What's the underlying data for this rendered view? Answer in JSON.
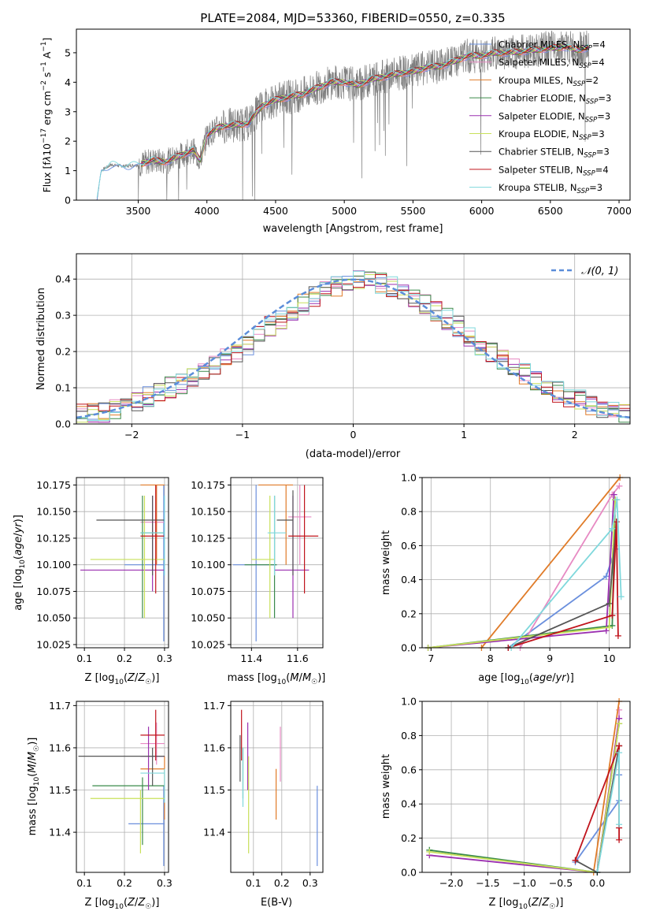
{
  "colors": {
    "chabrier_miles": "#6a8fdd",
    "salpeter_miles": "#e78ac3",
    "kroupa_miles": "#e07b28",
    "chabrier_elodie": "#3a8a4a",
    "salpeter_elodie": "#9b30b0",
    "kroupa_elodie": "#c8e05a",
    "chabrier_stelib": "#555555",
    "salpeter_stelib": "#c0141c",
    "kroupa_stelib": "#7fd8dc",
    "grid": "#b0b0b0",
    "normal_curve": "#5b8dd9"
  },
  "chart_data": [
    {
      "id": "spectrum",
      "type": "line",
      "title": "PLATE=2084, MJD=53360, FIBERID=0550, z=0.335",
      "xlabel": "wavelength [Angstrom, rest frame]",
      "ylabel": "Flux [f_λ 10^-17 erg cm^-2 s^-1 A^-1]",
      "xlim": [
        3050,
        7080
      ],
      "ylim": [
        0,
        5.8
      ],
      "xticks": [
        3500,
        4000,
        4500,
        5000,
        5500,
        6000,
        6500,
        7000
      ],
      "yticks": [
        0,
        1,
        2,
        3,
        4,
        5
      ],
      "grid": false,
      "legend": "top-right",
      "data_continuum": {
        "x": [
          3200,
          3230,
          3300,
          3400,
          3500,
          3600,
          3700,
          3800,
          3900,
          3950,
          4000,
          4100,
          4200,
          4300,
          4400,
          4500,
          4600,
          4700,
          4800,
          4900,
          5000,
          5100,
          5200,
          5300,
          5400,
          5500,
          5600,
          5700,
          5800,
          5900,
          6000,
          6100,
          6200,
          6300,
          6400,
          6500,
          6600,
          6700,
          6800
        ],
        "y": [
          0.0,
          1.0,
          1.2,
          1.15,
          1.2,
          1.35,
          1.3,
          1.5,
          1.7,
          1.35,
          2.2,
          2.5,
          2.55,
          2.6,
          3.2,
          3.4,
          3.5,
          3.6,
          3.8,
          4.0,
          4.0,
          3.9,
          4.1,
          4.2,
          4.3,
          4.35,
          4.5,
          4.55,
          4.7,
          4.9,
          4.9,
          5.0,
          5.0,
          5.05,
          5.1,
          5.15,
          5.2,
          5.1,
          5.2
        ]
      },
      "series_names": [
        "Chabrier MILES, N_SSP=4",
        "Salpeter MILES, N_SSP=4",
        "Kroupa MILES, N_SSP=2",
        "Chabrier ELODIE, N_SSP=3",
        "Salpeter ELODIE, N_SSP=3",
        "Kroupa ELODIE, N_SSP=3",
        "Chabrier STELIB, N_SSP=3",
        "Salpeter STELIB, N_SSP=4",
        "Kroupa STELIB, N_SSP=3"
      ]
    },
    {
      "id": "residuals",
      "type": "line",
      "xlabel": "(data-model)/error",
      "ylabel": "Normed distribution",
      "xlim": [
        -2.5,
        2.5
      ],
      "ylim": [
        0,
        0.47
      ],
      "xticks": [
        -2,
        -1,
        0,
        1,
        2
      ],
      "yticks": [
        0.0,
        0.1,
        0.2,
        0.3,
        0.4
      ],
      "grid": true,
      "legend": "top-right",
      "legend_label": "N(0,1)",
      "bin_width": 0.1,
      "bin_start": -2.5,
      "hist_base": [
        0.025,
        0.03,
        0.03,
        0.04,
        0.045,
        0.06,
        0.075,
        0.085,
        0.1,
        0.11,
        0.125,
        0.14,
        0.16,
        0.18,
        0.2,
        0.22,
        0.245,
        0.27,
        0.29,
        0.31,
        0.33,
        0.35,
        0.365,
        0.38,
        0.39,
        0.4,
        0.395,
        0.39,
        0.38,
        0.365,
        0.345,
        0.33,
        0.31,
        0.29,
        0.27,
        0.245,
        0.22,
        0.2,
        0.18,
        0.16,
        0.14,
        0.12,
        0.11,
        0.09,
        0.075,
        0.065,
        0.055,
        0.045,
        0.035,
        0.03
      ]
    },
    {
      "id": "age_vs_Z",
      "type": "scatter",
      "xlabel": "Z [log10(Z/Z☉)]",
      "ylabel": "age [log10(age/yr)]",
      "xlim": [
        0.08,
        0.31
      ],
      "ylim": [
        10.022,
        10.182
      ],
      "xticks": [
        0.1,
        0.2,
        0.3
      ],
      "yticks": [
        10.025,
        10.05,
        10.075,
        10.1,
        10.125,
        10.15,
        10.175
      ],
      "grid": true,
      "points": [
        {
          "series": "chabrier_miles",
          "x": 0.298,
          "xerr": [
            0.2,
            0.3
          ],
          "y": 10.1,
          "yerr": [
            10.028,
            10.175
          ]
        },
        {
          "series": "salpeter_miles",
          "x": 0.28,
          "xerr": [
            0.24,
            0.3
          ],
          "y": 10.14,
          "yerr": [
            10.1,
            10.175
          ]
        },
        {
          "series": "kroupa_miles",
          "x": 0.28,
          "xerr": [
            0.24,
            0.3
          ],
          "y": 10.175,
          "yerr": [
            10.1,
            10.175
          ]
        },
        {
          "series": "chabrier_elodie",
          "x": 0.245,
          "xerr": [
            0.24,
            0.3
          ],
          "y": 10.13,
          "yerr": [
            10.05,
            10.165
          ]
        },
        {
          "series": "salpeter_elodie",
          "x": 0.27,
          "xerr": [
            0.09,
            0.3
          ],
          "y": 10.095,
          "yerr": [
            10.075,
            10.165
          ]
        },
        {
          "series": "kroupa_elodie",
          "x": 0.25,
          "xerr": [
            0.115,
            0.3
          ],
          "y": 10.105,
          "yerr": [
            10.05,
            10.165
          ]
        },
        {
          "series": "chabrier_stelib",
          "x": 0.27,
          "xerr": [
            0.13,
            0.3
          ],
          "y": 10.142,
          "yerr": [
            10.09,
            10.165
          ]
        },
        {
          "series": "salpeter_stelib",
          "x": 0.278,
          "xerr": [
            0.24,
            0.3
          ],
          "y": 10.127,
          "yerr": [
            10.073,
            10.175
          ]
        },
        {
          "series": "kroupa_stelib",
          "x": 0.3,
          "xerr": [
            0.24,
            0.3
          ],
          "y": 10.13,
          "yerr": [
            10.09,
            10.165
          ]
        }
      ]
    },
    {
      "id": "age_vs_mass",
      "type": "scatter",
      "xlabel": "mass [log10(M/M☉)]",
      "xlim": [
        11.31,
        11.71
      ],
      "ylim": [
        10.022,
        10.182
      ],
      "xticks": [
        11.4,
        11.6
      ],
      "yticks": [
        10.025,
        10.05,
        10.075,
        10.1,
        10.125,
        10.15,
        10.175
      ],
      "grid": true,
      "points": [
        {
          "series": "chabrier_miles",
          "x": 11.42,
          "xerr": [
            11.32,
            11.51
          ],
          "y": 10.1,
          "yerr": [
            10.028,
            10.175
          ]
        },
        {
          "series": "salpeter_miles",
          "x": 11.61,
          "xerr": [
            11.56,
            11.66
          ],
          "y": 10.145,
          "yerr": [
            10.1,
            10.175
          ]
        },
        {
          "series": "kroupa_miles",
          "x": 11.55,
          "xerr": [
            11.43,
            11.58
          ],
          "y": 10.175,
          "yerr": [
            10.1,
            10.175
          ]
        },
        {
          "series": "chabrier_elodie",
          "x": 11.5,
          "xerr": [
            11.37,
            11.51
          ],
          "y": 10.1,
          "yerr": [
            10.05,
            10.165
          ]
        },
        {
          "series": "salpeter_elodie",
          "x": 11.58,
          "xerr": [
            11.5,
            11.65
          ],
          "y": 10.095,
          "yerr": [
            10.05,
            10.165
          ]
        },
        {
          "series": "kroupa_elodie",
          "x": 11.48,
          "xerr": [
            11.4,
            11.5
          ],
          "y": 10.105,
          "yerr": [
            10.05,
            10.165
          ]
        },
        {
          "series": "chabrier_stelib",
          "x": 11.58,
          "xerr": [
            11.51,
            11.58
          ],
          "y": 10.142,
          "yerr": [
            10.09,
            10.17
          ]
        },
        {
          "series": "salpeter_stelib",
          "x": 11.63,
          "xerr": [
            11.56,
            11.69
          ],
          "y": 10.127,
          "yerr": [
            10.073,
            10.175
          ]
        },
        {
          "series": "kroupa_stelib",
          "x": 11.5,
          "xerr": [
            11.47,
            11.55
          ],
          "y": 10.13,
          "yerr": [
            10.09,
            10.165
          ]
        }
      ]
    },
    {
      "id": "mass_weight_vs_age",
      "type": "line",
      "xlabel": "age  [log10(age/yr)]",
      "ylabel": "mass weight",
      "xlim": [
        6.85,
        10.35
      ],
      "ylim": [
        0,
        1
      ],
      "xticks": [
        7,
        8,
        9,
        10
      ],
      "yticks": [
        0.0,
        0.2,
        0.4,
        0.6,
        0.8,
        1.0
      ],
      "grid": true,
      "series": [
        {
          "key": "chabrier_miles",
          "x": [
            8.3,
            9.95,
            10.1
          ],
          "y": [
            0.0,
            0.42,
            0.58
          ]
        },
        {
          "key": "salpeter_miles",
          "x": [
            8.5,
            10.05,
            10.17
          ],
          "y": [
            0.0,
            0.9,
            0.95
          ]
        },
        {
          "key": "kroupa_miles",
          "x": [
            7.85,
            10.18
          ],
          "y": [
            0.0,
            1.0
          ]
        },
        {
          "key": "chabrier_elodie",
          "x": [
            6.95,
            10.05,
            10.1
          ],
          "y": [
            0.0,
            0.13,
            0.87
          ]
        },
        {
          "key": "salpeter_elodie",
          "x": [
            6.95,
            9.95,
            10.08
          ],
          "y": [
            0.0,
            0.1,
            0.9
          ]
        },
        {
          "key": "kroupa_elodie",
          "x": [
            6.95,
            10.0,
            10.1
          ],
          "y": [
            0.0,
            0.12,
            0.87
          ]
        },
        {
          "key": "chabrier_stelib",
          "x": [
            8.3,
            10.0,
            10.12
          ],
          "y": [
            0.0,
            0.26,
            0.74
          ]
        },
        {
          "key": "salpeter_stelib",
          "x": [
            8.3,
            10.05,
            10.12,
            10.15
          ],
          "y": [
            0.0,
            0.19,
            0.74,
            0.07
          ]
        },
        {
          "key": "kroupa_stelib",
          "x": [
            8.35,
            10.05,
            10.13,
            10.2
          ],
          "y": [
            0.0,
            0.7,
            0.87,
            0.3
          ]
        }
      ]
    },
    {
      "id": "mass_vs_Z",
      "type": "scatter",
      "xlabel": "Z [log10(Z/Z☉)]",
      "ylabel": "mass [log10(M/M☉)]",
      "xlim": [
        0.08,
        0.31
      ],
      "ylim": [
        11.305,
        11.71
      ],
      "xticks": [
        0.1,
        0.2,
        0.3
      ],
      "yticks": [
        11.4,
        11.5,
        11.6,
        11.7
      ],
      "grid": true,
      "points": [
        {
          "series": "chabrier_miles",
          "x": 0.298,
          "xerr": [
            0.21,
            0.3
          ],
          "y": 11.42,
          "yerr": [
            11.32,
            11.51
          ]
        },
        {
          "series": "salpeter_miles",
          "x": 0.28,
          "xerr": [
            0.24,
            0.3
          ],
          "y": 11.61,
          "yerr": [
            11.56,
            11.66
          ]
        },
        {
          "series": "kroupa_miles",
          "x": 0.3,
          "xerr": [
            0.24,
            0.3
          ],
          "y": 11.55,
          "yerr": [
            11.43,
            11.58
          ]
        },
        {
          "series": "chabrier_elodie",
          "x": 0.245,
          "xerr": [
            0.12,
            0.3
          ],
          "y": 11.51,
          "yerr": [
            11.37,
            11.53
          ]
        },
        {
          "series": "salpeter_elodie",
          "x": 0.26,
          "xerr": [
            0.24,
            0.3
          ],
          "y": 11.58,
          "yerr": [
            11.5,
            11.65
          ]
        },
        {
          "series": "kroupa_elodie",
          "x": 0.24,
          "xerr": [
            0.115,
            0.3
          ],
          "y": 11.48,
          "yerr": [
            11.35,
            11.5
          ]
        },
        {
          "series": "chabrier_stelib",
          "x": 0.27,
          "xerr": [
            0.085,
            0.3
          ],
          "y": 11.58,
          "yerr": [
            11.51,
            11.6
          ]
        },
        {
          "series": "salpeter_stelib",
          "x": 0.278,
          "xerr": [
            0.24,
            0.3
          ],
          "y": 11.63,
          "yerr": [
            11.57,
            11.69
          ]
        },
        {
          "series": "kroupa_stelib",
          "x": 0.3,
          "xerr": [
            0.24,
            0.3
          ],
          "y": 11.54,
          "yerr": [
            11.47,
            11.55
          ]
        }
      ]
    },
    {
      "id": "mass_vs_ebv",
      "type": "scatter",
      "xlabel": "E(B-V)",
      "xlim": [
        0.02,
        0.345
      ],
      "ylim": [
        11.305,
        11.71
      ],
      "xticks": [
        0.1,
        0.2,
        0.3
      ],
      "yticks": [
        11.4,
        11.5,
        11.6,
        11.7
      ],
      "grid": true,
      "points": [
        {
          "series": "chabrier_miles",
          "x": 0.325,
          "y": 11.42,
          "yerr": [
            11.32,
            11.51
          ]
        },
        {
          "series": "salpeter_miles",
          "x": 0.195,
          "y": 11.6,
          "yerr": [
            11.52,
            11.65
          ]
        },
        {
          "series": "kroupa_miles",
          "x": 0.18,
          "y": 11.49,
          "yerr": [
            11.43,
            11.55
          ]
        },
        {
          "series": "chabrier_elodie",
          "x": 0.063,
          "y": 11.55,
          "yerr": [
            11.48,
            11.6
          ]
        },
        {
          "series": "salpeter_elodie",
          "x": 0.08,
          "y": 11.58,
          "yerr": [
            11.5,
            11.66
          ]
        },
        {
          "series": "kroupa_elodie",
          "x": 0.083,
          "y": 11.45,
          "yerr": [
            11.35,
            11.58
          ]
        },
        {
          "series": "chabrier_stelib",
          "x": 0.053,
          "y": 11.58,
          "yerr": [
            11.52,
            11.63
          ]
        },
        {
          "series": "salpeter_stelib",
          "x": 0.058,
          "y": 11.63,
          "yerr": [
            11.57,
            11.69
          ]
        },
        {
          "series": "kroupa_stelib",
          "x": 0.063,
          "y": 11.53,
          "yerr": [
            11.46,
            11.6
          ]
        }
      ]
    },
    {
      "id": "mass_weight_vs_Z",
      "type": "line",
      "xlabel": "Z [log10(Z/Z☉)]",
      "ylabel": "mass weight",
      "xlim": [
        -2.4,
        0.45
      ],
      "ylim": [
        0,
        1
      ],
      "xticks": [
        -2.0,
        -1.5,
        -1.0,
        -0.5,
        0.0
      ],
      "yticks": [
        0.0,
        0.2,
        0.4,
        0.6,
        0.8,
        1.0
      ],
      "grid": true,
      "series": [
        {
          "key": "chabrier_miles",
          "x": [
            -0.3,
            0.3,
            0.3
          ],
          "y": [
            0.06,
            0.42,
            0.57
          ]
        },
        {
          "key": "salpeter_miles",
          "x": [
            0.0,
            0.3,
            0.3
          ],
          "y": [
            0.0,
            0.9,
            0.95
          ]
        },
        {
          "key": "kroupa_miles",
          "x": [
            -0.05,
            0.3
          ],
          "y": [
            0.0,
            1.0
          ]
        },
        {
          "key": "chabrier_elodie",
          "x": [
            -2.3,
            0.0,
            0.3
          ],
          "y": [
            0.13,
            0.0,
            0.87
          ]
        },
        {
          "key": "salpeter_elodie",
          "x": [
            -2.3,
            0.0,
            0.3
          ],
          "y": [
            0.1,
            0.0,
            0.9
          ]
        },
        {
          "key": "kroupa_elodie",
          "x": [
            -2.3,
            0.0,
            0.3
          ],
          "y": [
            0.12,
            0.0,
            0.87
          ]
        },
        {
          "key": "chabrier_stelib",
          "x": [
            -0.3,
            0.0,
            0.3
          ],
          "y": [
            0.07,
            0.0,
            0.74
          ]
        },
        {
          "key": "salpeter_stelib",
          "x": [
            -0.3,
            0.3,
            0.3,
            0.3
          ],
          "y": [
            0.07,
            0.74,
            0.26,
            0.19
          ]
        },
        {
          "key": "kroupa_stelib",
          "x": [
            0.0,
            0.3,
            0.3
          ],
          "y": [
            0.0,
            0.7,
            0.28
          ]
        }
      ]
    }
  ]
}
